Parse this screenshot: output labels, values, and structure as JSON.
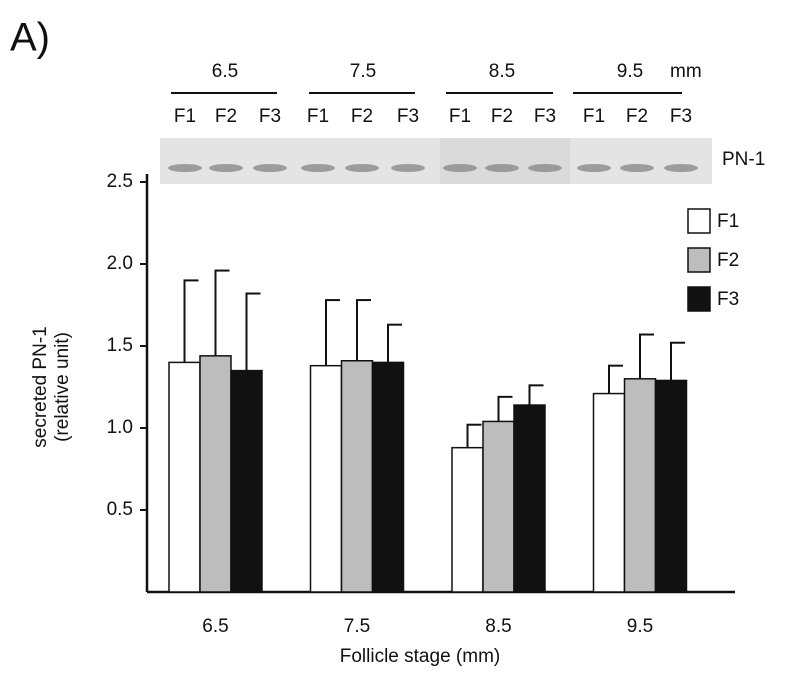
{
  "chart_data": {
    "type": "bar",
    "panel_label": "A)",
    "blot": {
      "stages": [
        "6.5",
        "7.5",
        "8.5",
        "9.5"
      ],
      "unit": "mm",
      "lanes": [
        "F1",
        "F2",
        "F3",
        "F1",
        "F2",
        "F3",
        "F1",
        "F2",
        "F3",
        "F1",
        "F2",
        "F3"
      ],
      "band_label": "PN-1"
    },
    "categories": [
      "6.5",
      "7.5",
      "8.5",
      "9.5"
    ],
    "xlabel": "Follicle stage (mm)",
    "ylabel": [
      "secreted PN-1",
      "(relative unit)"
    ],
    "series": [
      {
        "name": "F1",
        "color": "#ffffff",
        "values": [
          1.4,
          1.38,
          0.88,
          1.21
        ],
        "errors": [
          0.5,
          0.4,
          0.14,
          0.17
        ]
      },
      {
        "name": "F2",
        "color": "#bdbdbd",
        "values": [
          1.44,
          1.41,
          1.04,
          1.3
        ],
        "errors": [
          0.52,
          0.37,
          0.15,
          0.27
        ]
      },
      {
        "name": "F3",
        "color": "#111111",
        "values": [
          1.35,
          1.4,
          1.14,
          1.29
        ],
        "errors": [
          0.47,
          0.23,
          0.12,
          0.23
        ]
      }
    ],
    "ylim": [
      0,
      2.5
    ],
    "yticks": [
      0.5,
      {
        "value": 1,
        "label": "1.0"
      },
      1.5,
      {
        "value": 2,
        "label": "2.0"
      },
      2.5
    ],
    "legend": "top-right"
  }
}
